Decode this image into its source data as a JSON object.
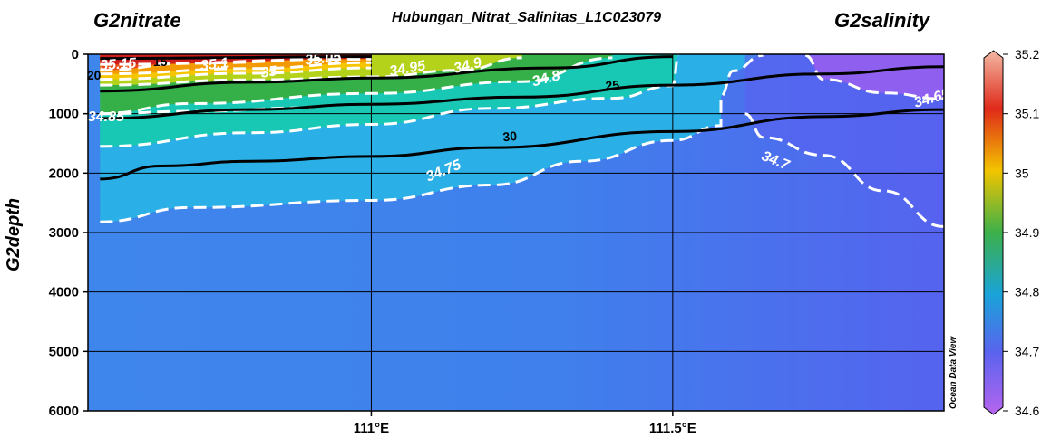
{
  "chart_data": {
    "type": "heatmap",
    "title": "Hubungan_Nitrat_Salinitas_L1C023079",
    "left_variable": "G2nitrate",
    "right_variable": "G2salinity",
    "ylabel": "G2depth",
    "xlabel": "",
    "x_ticks": [
      "111°E",
      "111.5°E"
    ],
    "x_tick_values": [
      111.0,
      111.5
    ],
    "xlim": [
      110.53,
      111.95
    ],
    "y_ticks": [
      "0",
      "1000",
      "2000",
      "3000",
      "4000",
      "5000",
      "6000"
    ],
    "ylim": [
      6000,
      0
    ],
    "y_reversed": true,
    "grid": true,
    "colorbar": {
      "variable": "G2salinity",
      "range": [
        34.6,
        35.2
      ],
      "ticks": [
        "35.2",
        "35.1",
        "35",
        "34.9",
        "34.8",
        "34.7",
        "34.6"
      ],
      "colors": [
        "#f2b8a3",
        "#e02a1a",
        "#f2c400",
        "#3cb04a",
        "#1aa3d9",
        "#5a63ee",
        "#b665ee"
      ]
    },
    "nitrate_contours": [
      {
        "level": "15",
        "points": [
          [
            110.55,
            70
          ],
          [
            111.0,
            40
          ]
        ]
      },
      {
        "level": "20",
        "points": [
          [
            110.55,
            620
          ],
          [
            110.8,
            470
          ],
          [
            111.0,
            400
          ],
          [
            111.3,
            230
          ],
          [
            111.5,
            40
          ]
        ]
      },
      {
        "level": "25",
        "points": [
          [
            110.55,
            1080
          ],
          [
            110.8,
            930
          ],
          [
            111.0,
            840
          ],
          [
            111.25,
            720
          ],
          [
            111.5,
            520
          ],
          [
            111.75,
            330
          ],
          [
            111.95,
            210
          ]
        ]
      },
      {
        "level": "30",
        "points": [
          [
            110.55,
            2100
          ],
          [
            110.65,
            1880
          ],
          [
            110.8,
            1800
          ],
          [
            111.0,
            1720
          ],
          [
            111.2,
            1570
          ],
          [
            111.5,
            1300
          ],
          [
            111.75,
            1050
          ],
          [
            111.95,
            930
          ]
        ]
      }
    ],
    "salinity_contours": [
      {
        "level": "35.15",
        "points": [
          [
            110.55,
            170
          ],
          [
            111.0,
            80
          ]
        ]
      },
      {
        "level": "35.1",
        "points": [
          [
            110.55,
            270
          ],
          [
            110.7,
            150
          ],
          [
            111.0,
            60
          ]
        ]
      },
      {
        "level": "35.05",
        "points": [
          [
            110.55,
            330
          ],
          [
            110.8,
            240
          ],
          [
            111.0,
            140
          ]
        ]
      },
      {
        "level": "35",
        "points": [
          [
            110.55,
            420
          ],
          [
            110.8,
            320
          ],
          [
            111.0,
            230
          ]
        ]
      },
      {
        "level": "34.95",
        "points": [
          [
            110.55,
            520
          ],
          [
            110.8,
            430
          ],
          [
            111.0,
            380
          ],
          [
            111.15,
            270
          ],
          [
            111.25,
            60
          ]
        ]
      },
      {
        "level": "34.9",
        "points": [
          [
            110.55,
            1000
          ],
          [
            110.7,
            830
          ],
          [
            111.0,
            660
          ],
          [
            111.25,
            460
          ],
          [
            111.4,
            60
          ]
        ]
      },
      {
        "level": "34.85",
        "points": [
          [
            110.55,
            1000
          ],
          [
            110.7,
            960
          ],
          [
            110.9,
            900
          ]
        ]
      },
      {
        "level": "34.8",
        "points": [
          [
            110.55,
            1550
          ],
          [
            110.8,
            1320
          ],
          [
            111.0,
            1180
          ],
          [
            111.2,
            910
          ],
          [
            111.4,
            740
          ],
          [
            111.5,
            530
          ],
          [
            111.51,
            0
          ]
        ]
      },
      {
        "level": "34.75",
        "points": [
          [
            110.55,
            2820
          ],
          [
            110.7,
            2580
          ],
          [
            111.0,
            2460
          ],
          [
            111.2,
            2200
          ],
          [
            111.35,
            1800
          ],
          [
            111.5,
            1450
          ],
          [
            111.58,
            1200
          ],
          [
            111.58,
            700
          ],
          [
            111.6,
            280
          ],
          [
            111.65,
            20
          ]
        ]
      },
      {
        "level": "34.7",
        "points": [
          [
            111.62,
            1000
          ],
          [
            111.65,
            1400
          ],
          [
            111.75,
            1700
          ],
          [
            111.85,
            2300
          ],
          [
            111.95,
            2900
          ]
        ]
      },
      {
        "level": "34.65",
        "points": [
          [
            111.72,
            20
          ],
          [
            111.75,
            420
          ],
          [
            111.85,
            650
          ],
          [
            111.95,
            750
          ]
        ]
      }
    ]
  }
}
